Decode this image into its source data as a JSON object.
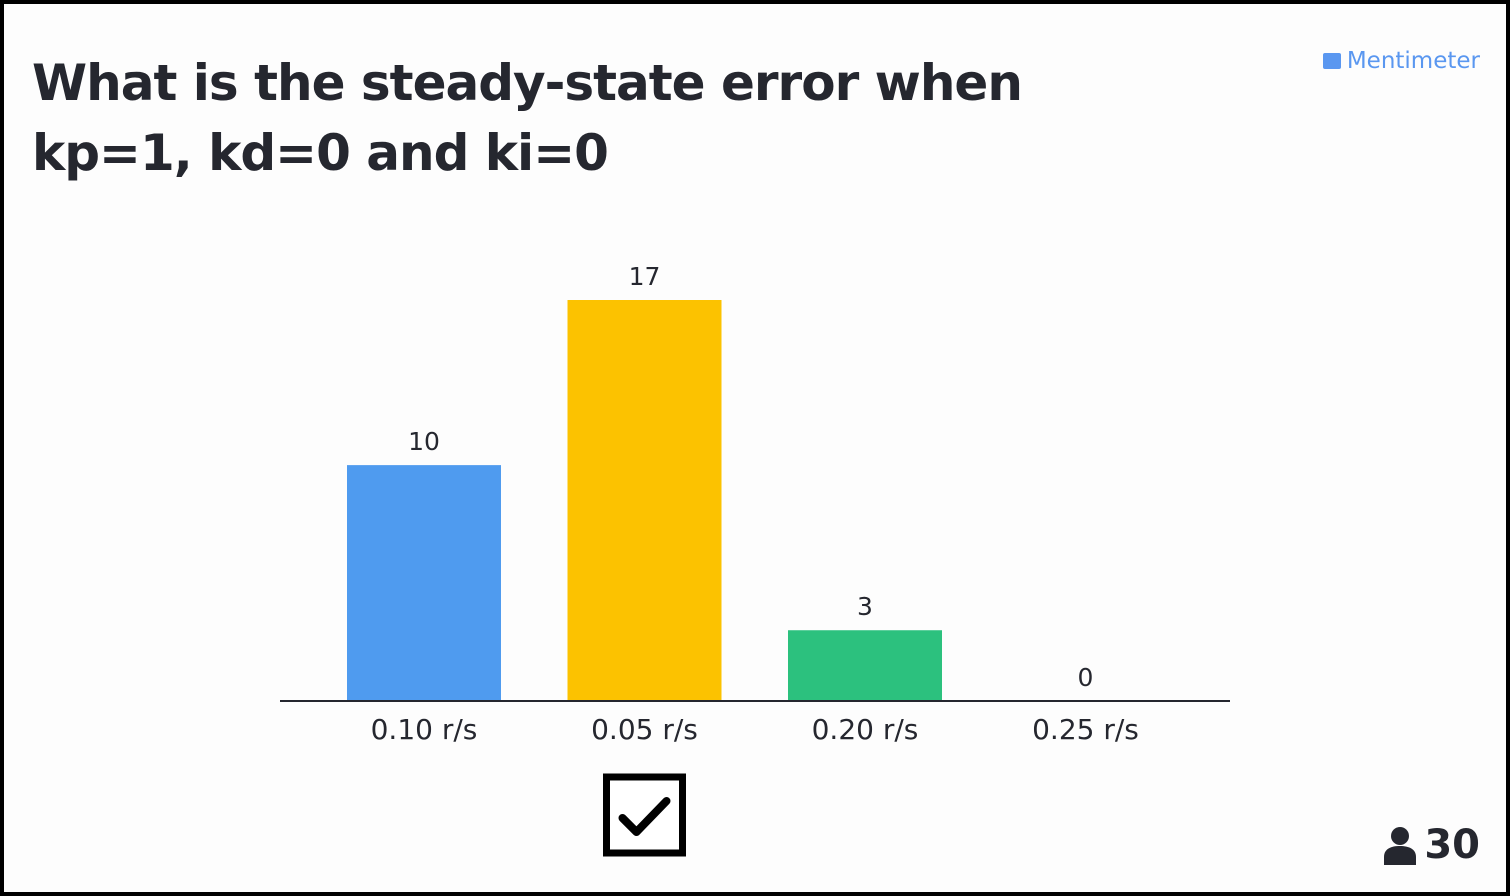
{
  "brand": "Mentimeter",
  "participants": 30,
  "chart_data": {
    "type": "bar",
    "title": "What is the steady-state error when kp=1, kd=0 and ki=0",
    "categories": [
      "0.10 r/s",
      "0.05 r/s",
      "0.20 r/s",
      "0.25 r/s"
    ],
    "values": [
      10,
      17,
      3,
      0
    ],
    "colors": [
      "#4f9bef",
      "#fcc200",
      "#2cc17e",
      "#f2617a"
    ],
    "correct_index": 1
  }
}
